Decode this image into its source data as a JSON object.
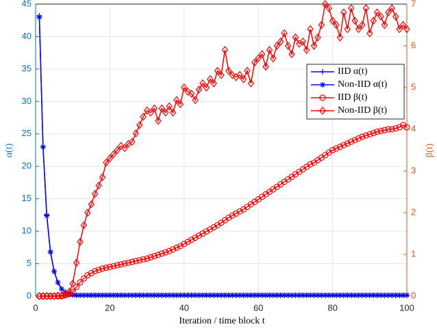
{
  "chart_data": {
    "type": "line",
    "xlabel": "Iteration / time block t",
    "ylabel": "α(t)",
    "y2label": "β(t)",
    "x": [
      1,
      2,
      3,
      4,
      5,
      6,
      7,
      8,
      9,
      10,
      11,
      12,
      13,
      14,
      15,
      16,
      17,
      18,
      19,
      20,
      21,
      22,
      23,
      24,
      25,
      26,
      27,
      28,
      29,
      30,
      31,
      32,
      33,
      34,
      35,
      36,
      37,
      38,
      39,
      40,
      41,
      42,
      43,
      44,
      45,
      46,
      47,
      48,
      49,
      50,
      51,
      52,
      53,
      54,
      55,
      56,
      57,
      58,
      59,
      60,
      61,
      62,
      63,
      64,
      65,
      66,
      67,
      68,
      69,
      70,
      71,
      72,
      73,
      74,
      75,
      76,
      77,
      78,
      79,
      80,
      81,
      82,
      83,
      84,
      85,
      86,
      87,
      88,
      89,
      90,
      91,
      92,
      93,
      94,
      95,
      96,
      97,
      98,
      99,
      100
    ],
    "xlim": [
      0,
      100
    ],
    "xticks": [
      0,
      20,
      40,
      60,
      80,
      100
    ],
    "ylim": [
      0,
      45
    ],
    "yticks": [
      0,
      5,
      10,
      15,
      20,
      25,
      30,
      35,
      40,
      45
    ],
    "y2lim": [
      0,
      7
    ],
    "y2ticks": [
      0,
      1,
      2,
      3,
      4,
      5,
      6,
      7
    ],
    "grid": true,
    "legend": "upper right",
    "ycolor": "#0072bd",
    "y2color": "#d95319",
    "series": [
      {
        "name": "IID α(t)",
        "color": "#0000ff",
        "marker": "+",
        "values": [
          43.2,
          23,
          12.5,
          6.8,
          3.8,
          2.1,
          1.1,
          0.6,
          0.35,
          0.2,
          0.1,
          0.1,
          0.1,
          0.1,
          0.1,
          0.1,
          0.1,
          0.1,
          0.1,
          0.1,
          0.1,
          0.1,
          0.1,
          0.1,
          0.1,
          0.1,
          0.1,
          0.1,
          0.1,
          0.1,
          0.1,
          0.1,
          0.1,
          0.1,
          0.1,
          0.1,
          0.1,
          0.1,
          0.1,
          0.1,
          0.1,
          0.1,
          0.1,
          0.1,
          0.1,
          0.1,
          0.1,
          0.1,
          0.1,
          0.1,
          0.1,
          0.1,
          0.1,
          0.1,
          0.1,
          0.1,
          0.1,
          0.1,
          0.1,
          0.1,
          0.1,
          0.1,
          0.1,
          0.1,
          0.1,
          0.1,
          0.1,
          0.1,
          0.1,
          0.1,
          0.1,
          0.1,
          0.1,
          0.1,
          0.1,
          0.1,
          0.1,
          0.1,
          0.1,
          0.1,
          0.1,
          0.1,
          0.1,
          0.1,
          0.1,
          0.1,
          0.1,
          0.1,
          0.1,
          0.1,
          0.1,
          0.1,
          0.1,
          0.1,
          0.1,
          0.1,
          0.1,
          0.1,
          0.1,
          0.1
        ]
      },
      {
        "name": "Non-IID α(t)",
        "color": "#0000ff",
        "marker": "*",
        "values": [
          43,
          23,
          12.4,
          6.8,
          3.8,
          2.1,
          1.1,
          0.6,
          0.35,
          0.2,
          0.15,
          0.15,
          0.15,
          0.15,
          0.15,
          0.15,
          0.15,
          0.15,
          0.15,
          0.15,
          0.15,
          0.15,
          0.15,
          0.15,
          0.15,
          0.15,
          0.15,
          0.15,
          0.15,
          0.15,
          0.15,
          0.15,
          0.15,
          0.15,
          0.15,
          0.15,
          0.15,
          0.15,
          0.15,
          0.15,
          0.15,
          0.15,
          0.15,
          0.15,
          0.15,
          0.15,
          0.15,
          0.15,
          0.15,
          0.15,
          0.15,
          0.15,
          0.15,
          0.15,
          0.15,
          0.15,
          0.15,
          0.15,
          0.15,
          0.15,
          0.15,
          0.15,
          0.15,
          0.15,
          0.15,
          0.15,
          0.15,
          0.15,
          0.15,
          0.15,
          0.15,
          0.15,
          0.15,
          0.15,
          0.15,
          0.15,
          0.15,
          0.15,
          0.15,
          0.15,
          0.15,
          0.15,
          0.15,
          0.15,
          0.15,
          0.15,
          0.15,
          0.15,
          0.15,
          0.15,
          0.15,
          0.15,
          0.15,
          0.15,
          0.15,
          0.15,
          0.15,
          0.15,
          0.15,
          0.15
        ]
      },
      {
        "name": "IID β(t)",
        "color": "#ff0000",
        "marker": "o",
        "axis": "y2",
        "values": [
          0,
          0,
          0,
          0,
          0,
          0,
          0,
          0.02,
          0.05,
          0.1,
          0.22,
          0.33,
          0.42,
          0.5,
          0.55,
          0.6,
          0.63,
          0.66,
          0.68,
          0.7,
          0.72,
          0.74,
          0.76,
          0.78,
          0.8,
          0.82,
          0.84,
          0.86,
          0.88,
          0.9,
          0.93,
          0.96,
          0.99,
          1.02,
          1.05,
          1.08,
          1.12,
          1.16,
          1.2,
          1.25,
          1.3,
          1.35,
          1.4,
          1.45,
          1.5,
          1.55,
          1.6,
          1.65,
          1.7,
          1.76,
          1.82,
          1.88,
          1.93,
          1.98,
          2.03,
          2.08,
          2.14,
          2.2,
          2.26,
          2.32,
          2.38,
          2.44,
          2.5,
          2.56,
          2.62,
          2.68,
          2.74,
          2.8,
          2.86,
          2.92,
          2.98,
          3.04,
          3.1,
          3.16,
          3.2,
          3.26,
          3.32,
          3.38,
          3.44,
          3.5,
          3.54,
          3.58,
          3.62,
          3.66,
          3.7,
          3.74,
          3.78,
          3.82,
          3.85,
          3.88,
          3.91,
          3.94,
          3.96,
          3.98,
          4.0,
          4.0,
          4.02,
          4.05,
          4.1,
          4.05
        ]
      },
      {
        "name": "Non-IID β(t)",
        "color": "#ff0000",
        "marker": "diamond",
        "axis": "y2",
        "values": [
          0,
          0,
          0,
          0,
          0,
          0.01,
          0.02,
          0.04,
          0.1,
          0.3,
          0.8,
          1.3,
          1.7,
          2.0,
          2.2,
          2.45,
          2.65,
          2.85,
          3.2,
          3.3,
          3.4,
          3.5,
          3.6,
          3.55,
          3.65,
          3.7,
          3.9,
          4.1,
          4.3,
          4.45,
          4.4,
          4.5,
          4.2,
          4.5,
          4.4,
          4.55,
          4.4,
          4.7,
          4.6,
          5.0,
          4.9,
          4.85,
          4.7,
          4.95,
          5.1,
          5.0,
          5.2,
          5.1,
          5.4,
          5.3,
          5.9,
          5.4,
          5.3,
          5.25,
          5.3,
          5.2,
          5.4,
          5.1,
          5.6,
          5.7,
          5.8,
          5.5,
          5.9,
          5.7,
          6.0,
          6.1,
          6.3,
          6.0,
          5.8,
          6.2,
          6.05,
          6.1,
          5.9,
          6.4,
          6.0,
          6.2,
          6.5,
          7.0,
          6.9,
          6.6,
          6.5,
          6.2,
          6.8,
          6.4,
          6.9,
          6.6,
          6.4,
          6.5,
          6.9,
          6.3,
          6.6,
          6.8,
          6.7,
          6.5,
          6.8,
          6.9,
          6.7,
          6.4,
          6.5,
          6.4
        ]
      }
    ]
  }
}
